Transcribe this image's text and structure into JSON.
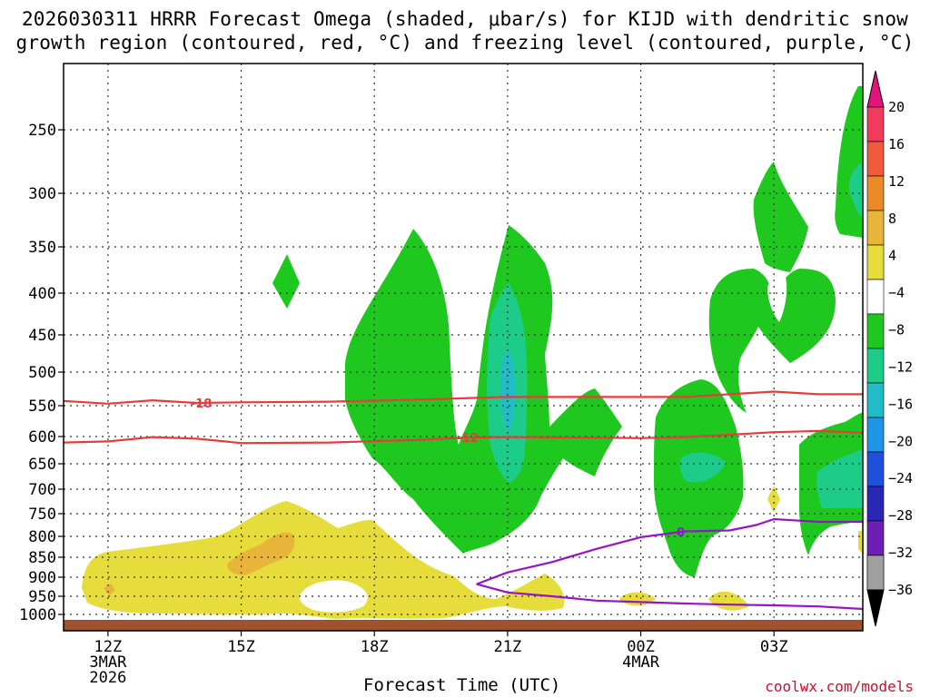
{
  "title": {
    "line1": "2026030311 HRRR Forecast Omega (shaded, μbar/s) for KIJD with dendritic snow",
    "line2": "growth region (contoured, red, °C) and freezing level (contoured, purple, °C)"
  },
  "credit": "coolwx.com/models",
  "chart_data": {
    "type": "heatmap",
    "title": "2026030311 HRRR Forecast Omega (shaded, μbar/s) for KIJD with dendritic snow growth region (contoured, red, °C) and freezing level (contoured, purple, °C)",
    "xlabel": "Forecast Time (UTC)",
    "ylabel": "",
    "x_ticks": [
      {
        "hour": 0,
        "label": "12Z",
        "sub1": "3MAR",
        "sub2": "2026"
      },
      {
        "hour": 3,
        "label": "15Z",
        "sub1": "",
        "sub2": ""
      },
      {
        "hour": 6,
        "label": "18Z",
        "sub1": "",
        "sub2": ""
      },
      {
        "hour": 9,
        "label": "21Z",
        "sub1": "",
        "sub2": ""
      },
      {
        "hour": 12,
        "label": "00Z",
        "sub1": "4MAR",
        "sub2": ""
      },
      {
        "hour": 15,
        "label": "03Z",
        "sub1": "",
        "sub2": ""
      }
    ],
    "x_range_hours": [
      -1,
      17
    ],
    "y_ticks": [
      {
        "hpa": 250,
        "label": "250"
      },
      {
        "hpa": 300,
        "label": "300"
      },
      {
        "hpa": 350,
        "label": "350"
      },
      {
        "hpa": 400,
        "label": "400"
      },
      {
        "hpa": 450,
        "label": "450"
      },
      {
        "hpa": 500,
        "label": "500"
      },
      {
        "hpa": 550,
        "label": "550"
      },
      {
        "hpa": 600,
        "label": "600"
      },
      {
        "hpa": 650,
        "label": "650"
      },
      {
        "hpa": 700,
        "label": "700"
      },
      {
        "hpa": 750,
        "label": "750"
      },
      {
        "hpa": 800,
        "label": "800"
      },
      {
        "hpa": 850,
        "label": "850"
      },
      {
        "hpa": 900,
        "label": "900"
      },
      {
        "hpa": 950,
        "label": "950"
      },
      {
        "hpa": 1000,
        "label": "1000"
      }
    ],
    "colorbar": {
      "labels": [
        "20",
        "16",
        "12",
        "8",
        "4",
        "−4",
        "−8",
        "−12",
        "−16",
        "−20",
        "−24",
        "−28",
        "−32",
        "−36"
      ],
      "colors": [
        "#f03c5a",
        "#f05a3c",
        "#eb8a28",
        "#e8b43a",
        "#e6dc3c",
        "#ffffff",
        "#1ec81e",
        "#1ecc8a",
        "#22bcc8",
        "#1e96e6",
        "#1e50dc",
        "#2828b4",
        "#6e1eb4",
        "#a01ec8",
        "#a0a0a0"
      ],
      "top_arrow_color": "#e0147a",
      "bottom_arrow_color": "#000000"
    },
    "series": [
      {
        "name": "-18 °C isotherm",
        "color": "#e83c3c",
        "label": "-18",
        "label_hour": 2.1,
        "points": [
          [
            -1,
            543
          ],
          [
            0,
            547
          ],
          [
            1,
            542
          ],
          [
            2,
            546
          ],
          [
            3,
            545
          ],
          [
            5,
            544
          ],
          [
            7,
            541
          ],
          [
            9,
            537
          ],
          [
            11,
            537
          ],
          [
            13,
            537
          ],
          [
            14,
            533
          ],
          [
            15,
            529
          ],
          [
            16,
            533
          ],
          [
            17,
            533
          ]
        ]
      },
      {
        "name": "-12 °C isotherm",
        "color": "#e83c3c",
        "label": "-12",
        "label_hour": 8.1,
        "points": [
          [
            -1,
            611
          ],
          [
            0,
            609
          ],
          [
            1,
            601
          ],
          [
            2,
            604
          ],
          [
            3,
            612
          ],
          [
            5,
            611
          ],
          [
            7,
            606
          ],
          [
            8,
            602
          ],
          [
            9,
            601
          ],
          [
            11,
            602
          ],
          [
            12,
            603
          ],
          [
            13,
            601
          ],
          [
            14,
            597
          ],
          [
            15,
            593
          ],
          [
            16,
            591
          ],
          [
            17,
            594
          ]
        ]
      },
      {
        "name": "0 °C freezing level",
        "color": "#9614c8",
        "label": "0",
        "label_hour": 12.9,
        "points": [
          [
            8.3,
            918
          ],
          [
            9,
            888
          ],
          [
            10,
            862
          ],
          [
            11,
            830
          ],
          [
            12,
            802
          ],
          [
            13,
            789
          ],
          [
            14,
            787
          ],
          [
            14.6,
            775
          ],
          [
            15,
            762
          ],
          [
            16,
            768
          ],
          [
            17,
            768
          ]
        ]
      },
      {
        "name": "0 °C freezing level (lower)",
        "color": "#9614c8",
        "label": "",
        "label_hour": 0,
        "points": [
          [
            8.3,
            918
          ],
          [
            9,
            940
          ],
          [
            10,
            950
          ],
          [
            11,
            962
          ],
          [
            12,
            966
          ],
          [
            13,
            970
          ],
          [
            14,
            973
          ],
          [
            15,
            975
          ],
          [
            16,
            978
          ],
          [
            17,
            985
          ]
        ]
      }
    ]
  }
}
